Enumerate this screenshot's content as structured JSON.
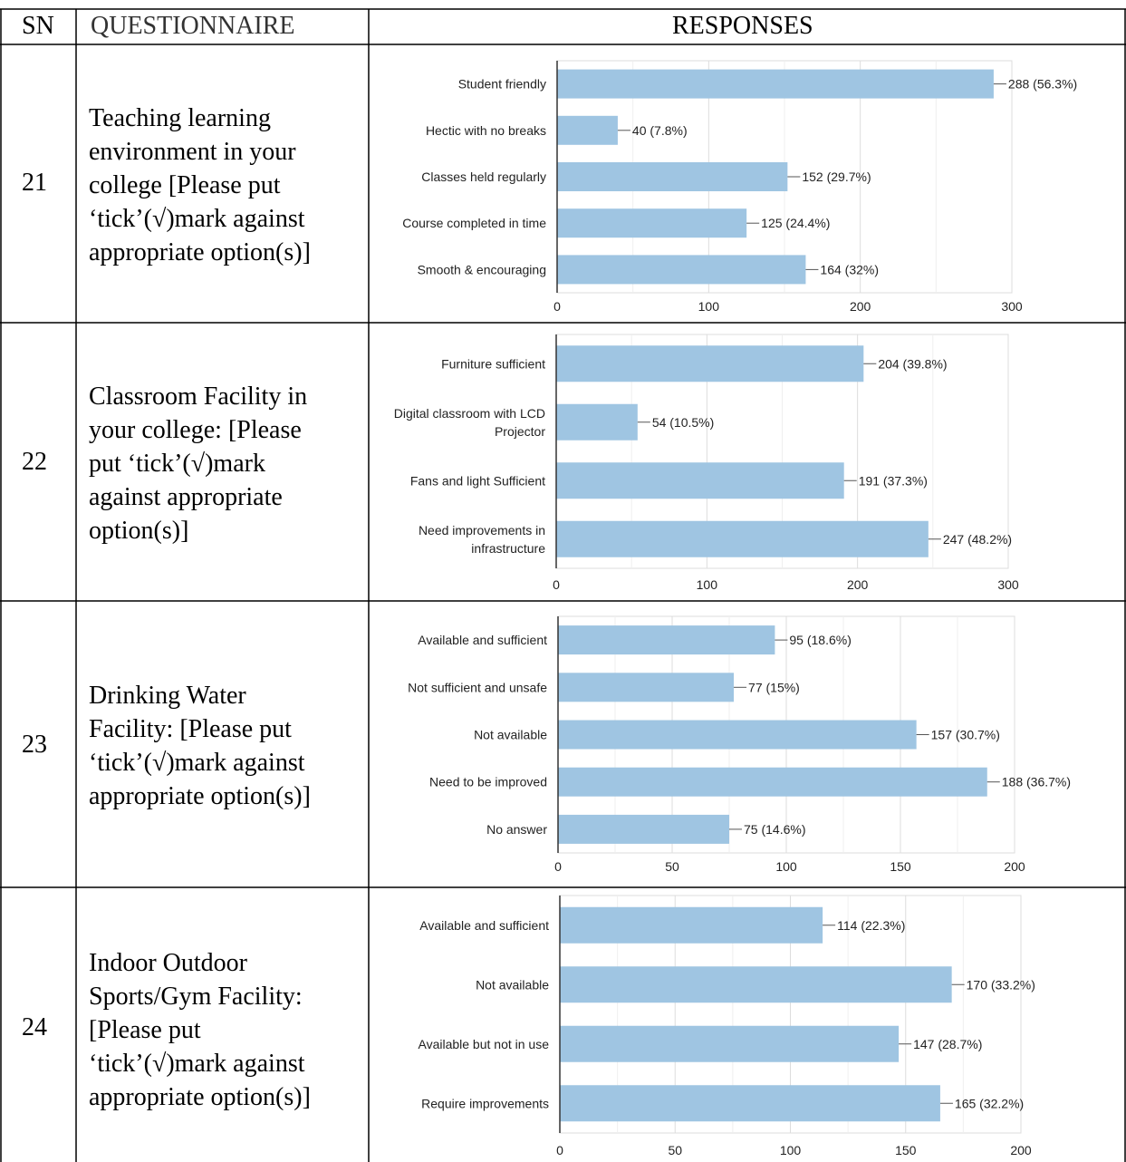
{
  "header": {
    "sn_label": "SN",
    "questionnaire_label": "QUESTIONNAIRE",
    "responses_label": "RESPONSES"
  },
  "rows": [
    {
      "sn": "21",
      "question": "Teaching learning\nenvironment in your\ncollege [Please put\n‘tick’(√)mark against\nappropriate option(s)]"
    },
    {
      "sn": "22",
      "question": "Classroom Facility in\nyour college: [Please\nput ‘tick’(√)mark\nagainst appropriate\noption(s)]"
    },
    {
      "sn": "23",
      "question": "Drinking Water\nFacility: [Please put\n‘tick’(√)mark against\nappropriate option(s)]"
    },
    {
      "sn": "24",
      "question": "Indoor Outdoor\nSports/Gym Facility:\n[Please put\n‘tick’(√)mark against\nappropriate option(s)]"
    }
  ],
  "colors": {
    "bar": "#9fc5e2",
    "grid": "#e6e6e6",
    "axis": "#333333",
    "text": "#222222"
  },
  "chart_data": [
    {
      "type": "bar",
      "orientation": "horizontal",
      "categories": [
        [
          "Student friendly"
        ],
        [
          "Hectic with no breaks"
        ],
        [
          "Classes held regularly"
        ],
        [
          "Course completed in time"
        ],
        [
          "Smooth & encouraging"
        ]
      ],
      "values": [
        288,
        40,
        152,
        125,
        164
      ],
      "labels": [
        "288 (56.3%)",
        "40 (7.8%)",
        "152 (29.7%)",
        "125 (24.4%)",
        "164 (32%)"
      ],
      "xticks": [
        0,
        100,
        200,
        300
      ],
      "xlim": [
        0,
        300
      ],
      "grid": true,
      "title": "",
      "xlabel": "",
      "ylabel": ""
    },
    {
      "type": "bar",
      "orientation": "horizontal",
      "categories": [
        [
          "Furniture sufficient"
        ],
        [
          "Digital classroom with LCD",
          "Projector"
        ],
        [
          "Fans and light Sufficient"
        ],
        [
          "Need improvements in",
          "infrastructure"
        ]
      ],
      "values": [
        204,
        54,
        191,
        247
      ],
      "labels": [
        "204 (39.8%)",
        "54 (10.5%)",
        "191 (37.3%)",
        "247 (48.2%)"
      ],
      "xticks": [
        0,
        100,
        200,
        300
      ],
      "xlim": [
        0,
        300
      ],
      "grid": true,
      "title": "",
      "xlabel": "",
      "ylabel": ""
    },
    {
      "type": "bar",
      "orientation": "horizontal",
      "categories": [
        [
          "Available and sufficient"
        ],
        [
          "Not sufficient and unsafe"
        ],
        [
          "Not available"
        ],
        [
          "Need to be improved"
        ],
        [
          "No answer"
        ]
      ],
      "values": [
        95,
        77,
        157,
        188,
        75
      ],
      "labels": [
        "95 (18.6%)",
        "77 (15%)",
        "157 (30.7%)",
        "188 (36.7%)",
        "75 (14.6%)"
      ],
      "xticks": [
        0,
        50,
        100,
        150,
        200
      ],
      "xlim": [
        0,
        200
      ],
      "grid": true,
      "title": "",
      "xlabel": "",
      "ylabel": ""
    },
    {
      "type": "bar",
      "orientation": "horizontal",
      "categories": [
        [
          "Available and sufficient"
        ],
        [
          "Not available"
        ],
        [
          "Available but not in use"
        ],
        [
          "Require improvements"
        ]
      ],
      "values": [
        114,
        170,
        147,
        165
      ],
      "labels": [
        "114 (22.3%)",
        "170 (33.2%)",
        "147 (28.7%)",
        "165 (32.2%)"
      ],
      "xticks": [
        0,
        50,
        100,
        150,
        200
      ],
      "xlim": [
        0,
        200
      ],
      "grid": true,
      "title": "",
      "xlabel": "",
      "ylabel": ""
    }
  ]
}
